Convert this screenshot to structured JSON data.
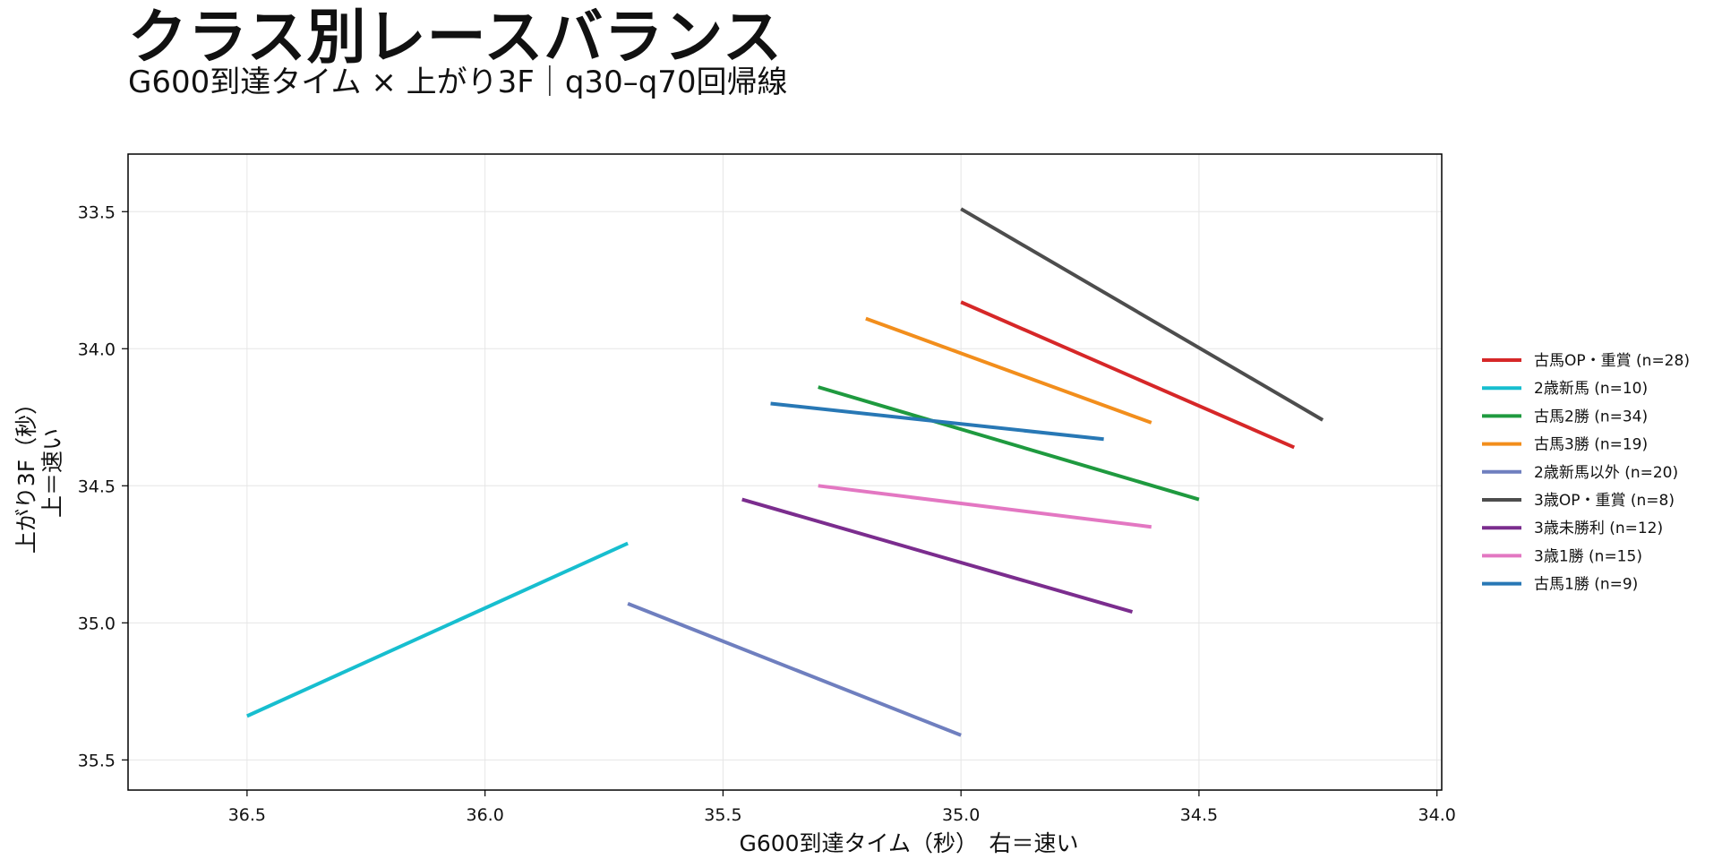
{
  "header": {
    "title": "クラス別レースバランス",
    "subtitle": "G600到達タイム × 上がり3F｜q30–q70回帰線"
  },
  "chart_data": {
    "type": "line",
    "xlabel": "G600到達タイム（秒）　右＝速い",
    "ylabel_line1": "上がり3F（秒）",
    "ylabel_line2": "上＝速い",
    "xlim": [
      36.75,
      33.99
    ],
    "ylim": [
      35.61,
      33.29
    ],
    "x_inverted": true,
    "y_inverted": true,
    "xticks": [
      36.5,
      36.0,
      35.5,
      35.0,
      34.5,
      34.0
    ],
    "xtick_labels": [
      "36.5",
      "36.0",
      "35.5",
      "35.0",
      "34.5",
      "34.0"
    ],
    "yticks": [
      33.5,
      34.0,
      34.5,
      35.0,
      35.5
    ],
    "ytick_labels": [
      "33.5",
      "34.0",
      "34.5",
      "35.0",
      "35.5"
    ],
    "grid": true,
    "legend_position": "right",
    "series": [
      {
        "name": "古馬OP・重賞 (n=28)",
        "color": "#d62728",
        "x": [
          35.0,
          34.3
        ],
        "y": [
          33.83,
          34.36
        ]
      },
      {
        "name": "2歳新馬 (n=10)",
        "color": "#17becf",
        "x": [
          36.5,
          35.7
        ],
        "y": [
          35.34,
          34.71
        ]
      },
      {
        "name": "古馬2勝 (n=34)",
        "color": "#1f9a3f",
        "x": [
          35.3,
          34.5
        ],
        "y": [
          34.14,
          34.55
        ]
      },
      {
        "name": "古馬3勝 (n=19)",
        "color": "#f28e1c",
        "x": [
          35.2,
          34.6
        ],
        "y": [
          33.89,
          34.27
        ]
      },
      {
        "name": "2歳新馬以外 (n=20)",
        "color": "#6f7fbf",
        "x": [
          35.7,
          35.0
        ],
        "y": [
          34.93,
          35.41
        ]
      },
      {
        "name": "3歳OP・重賞 (n=8)",
        "color": "#4d4d4d",
        "x": [
          35.0,
          34.24
        ],
        "y": [
          33.49,
          34.26
        ]
      },
      {
        "name": "3歳未勝利 (n=12)",
        "color": "#7b2d8e",
        "x": [
          35.46,
          34.64
        ],
        "y": [
          34.55,
          34.96
        ]
      },
      {
        "name": "3歳1勝 (n=15)",
        "color": "#e377c2",
        "x": [
          35.3,
          34.6
        ],
        "y": [
          34.5,
          34.65
        ]
      },
      {
        "name": "古馬1勝 (n=9)",
        "color": "#2878b5",
        "x": [
          35.4,
          34.7
        ],
        "y": [
          34.2,
          34.33
        ]
      }
    ]
  }
}
